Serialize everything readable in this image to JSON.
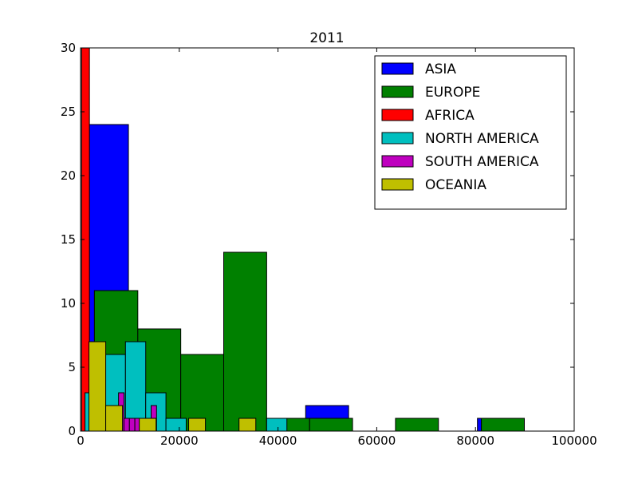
{
  "chart_data": {
    "type": "bar",
    "title": "2011",
    "xlabel": "",
    "ylabel": "",
    "xlim": [
      0,
      100000
    ],
    "ylim": [
      0,
      30
    ],
    "x_ticks": [
      0,
      20000,
      40000,
      60000,
      80000,
      100000
    ],
    "x_tick_labels": [
      "0",
      "20000",
      "40000",
      "60000",
      "80000",
      "100000"
    ],
    "y_ticks": [
      0,
      5,
      10,
      15,
      20,
      25,
      30
    ],
    "y_tick_labels": [
      "0",
      "5",
      "10",
      "15",
      "20",
      "25",
      "30"
    ],
    "grid": false,
    "legend_position": "top-right",
    "series": [
      {
        "name": "ASIA",
        "color": "#0000ff",
        "bins": [
          {
            "x0": 1000,
            "x1": 9700,
            "count": 24
          },
          {
            "x0": 45600,
            "x1": 54300,
            "count": 2
          },
          {
            "x0": 80400,
            "x1": 81200,
            "count": 1
          }
        ]
      },
      {
        "name": "EUROPE",
        "color": "#008000",
        "bins": [
          {
            "x0": 2800,
            "x1": 11600,
            "count": 11
          },
          {
            "x0": 11600,
            "x1": 20300,
            "count": 8
          },
          {
            "x0": 20300,
            "x1": 29000,
            "count": 6
          },
          {
            "x0": 29000,
            "x1": 37700,
            "count": 14
          },
          {
            "x0": 37700,
            "x1": 46400,
            "count": 1
          },
          {
            "x0": 46400,
            "x1": 55100,
            "count": 1
          },
          {
            "x0": 63800,
            "x1": 72500,
            "count": 1
          },
          {
            "x0": 81200,
            "x1": 89900,
            "count": 1
          }
        ]
      },
      {
        "name": "AFRICA",
        "color": "#ff0000",
        "bins": [
          {
            "x0": 200,
            "x1": 1800,
            "count": 30
          }
        ]
      },
      {
        "name": "NORTH AMERICA",
        "color": "#00bfbf",
        "bins": [
          {
            "x0": 900,
            "x1": 5000,
            "count": 3
          },
          {
            "x0": 5000,
            "x1": 9100,
            "count": 6
          },
          {
            "x0": 9100,
            "x1": 13200,
            "count": 7
          },
          {
            "x0": 13200,
            "x1": 17300,
            "count": 3
          },
          {
            "x0": 17300,
            "x1": 21400,
            "count": 1
          },
          {
            "x0": 37700,
            "x1": 41800,
            "count": 1
          }
        ]
      },
      {
        "name": "SOUTH AMERICA",
        "color": "#bf00bf",
        "bins": [
          {
            "x0": 7700,
            "x1": 8800,
            "count": 3
          },
          {
            "x0": 8800,
            "x1": 9900,
            "count": 1
          },
          {
            "x0": 9900,
            "x1": 11000,
            "count": 1
          },
          {
            "x0": 11000,
            "x1": 12100,
            "count": 1
          },
          {
            "x0": 14300,
            "x1": 15400,
            "count": 2
          }
        ]
      },
      {
        "name": "OCEANIA",
        "color": "#bfbf00",
        "bins": [
          {
            "x0": 1700,
            "x1": 5100,
            "count": 7
          },
          {
            "x0": 5100,
            "x1": 8500,
            "count": 2
          },
          {
            "x0": 11900,
            "x1": 15300,
            "count": 1
          },
          {
            "x0": 21900,
            "x1": 25300,
            "count": 1
          },
          {
            "x0": 32100,
            "x1": 35500,
            "count": 1
          }
        ]
      }
    ]
  }
}
